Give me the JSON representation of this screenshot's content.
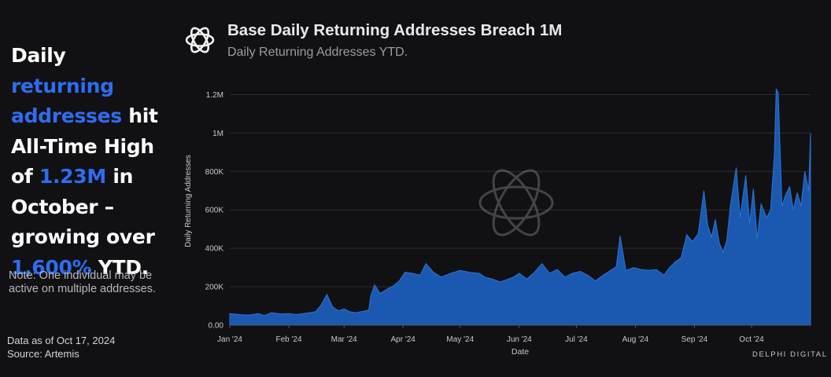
{
  "headline": {
    "p1": "Daily ",
    "h1": "returning addresses",
    "p2": " hit All-Time High of ",
    "h2": "1.23M",
    "p3": " in October – growing over ",
    "h3": "1,600%",
    "p4": " YTD."
  },
  "note": "Note: One individual may be active on multiple addresses.",
  "data_as_of": "Data as of Oct 17, 2024",
  "source": "Source: Artemis",
  "brand": "DELPHI DIGITAL",
  "colors": {
    "accent": "#2f6cf0",
    "area": "#1c5fbf",
    "background": "#111114"
  },
  "logo_icon": "delphi-knot-icon",
  "chart_data": {
    "type": "area",
    "title": "Base Daily Returning Addresses Breach 1M",
    "subtitle": "Daily Returning Addresses YTD.",
    "xlabel": "Date",
    "ylabel": "Daily Returning Addresses",
    "x_start": "2024-01-01",
    "x_end": "2024-10-17",
    "ylim": [
      0,
      1300000
    ],
    "y_ticks": [
      {
        "value": 0,
        "label": "0.00"
      },
      {
        "value": 200000,
        "label": "200K"
      },
      {
        "value": 400000,
        "label": "400K"
      },
      {
        "value": 600000,
        "label": "600K"
      },
      {
        "value": 800000,
        "label": "800K"
      },
      {
        "value": 1000000,
        "label": "1M"
      },
      {
        "value": 1200000,
        "label": "1.2M"
      }
    ],
    "x_ticks": [
      {
        "day": 0,
        "label": "Jan '24"
      },
      {
        "day": 31,
        "label": "Feb '24"
      },
      {
        "day": 60,
        "label": "Mar '24"
      },
      {
        "day": 91,
        "label": "Apr '24"
      },
      {
        "day": 121,
        "label": "May '24"
      },
      {
        "day": 152,
        "label": "Jun '24"
      },
      {
        "day": 182,
        "label": "Jul '24"
      },
      {
        "day": 213,
        "label": "Aug '24"
      },
      {
        "day": 244,
        "label": "Sep '24"
      },
      {
        "day": 274,
        "label": "Oct '24"
      }
    ],
    "grid": true,
    "series": [
      {
        "name": "Daily Returning Addresses",
        "points": [
          [
            0,
            60000
          ],
          [
            5,
            55000
          ],
          [
            10,
            52000
          ],
          [
            15,
            60000
          ],
          [
            18,
            50000
          ],
          [
            22,
            65000
          ],
          [
            27,
            58000
          ],
          [
            31,
            60000
          ],
          [
            35,
            55000
          ],
          [
            40,
            62000
          ],
          [
            45,
            70000
          ],
          [
            48,
            105000
          ],
          [
            51,
            160000
          ],
          [
            54,
            95000
          ],
          [
            57,
            75000
          ],
          [
            60,
            85000
          ],
          [
            63,
            70000
          ],
          [
            66,
            65000
          ],
          [
            70,
            72000
          ],
          [
            73,
            78000
          ],
          [
            74,
            150000
          ],
          [
            76,
            210000
          ],
          [
            79,
            165000
          ],
          [
            83,
            190000
          ],
          [
            86,
            205000
          ],
          [
            89,
            230000
          ],
          [
            92,
            275000
          ],
          [
            96,
            270000
          ],
          [
            100,
            260000
          ],
          [
            103,
            320000
          ],
          [
            107,
            275000
          ],
          [
            111,
            250000
          ],
          [
            116,
            270000
          ],
          [
            121,
            285000
          ],
          [
            126,
            275000
          ],
          [
            131,
            270000
          ],
          [
            134,
            250000
          ],
          [
            138,
            240000
          ],
          [
            142,
            225000
          ],
          [
            145,
            235000
          ],
          [
            149,
            250000
          ],
          [
            152,
            270000
          ],
          [
            156,
            240000
          ],
          [
            160,
            275000
          ],
          [
            164,
            320000
          ],
          [
            168,
            270000
          ],
          [
            172,
            290000
          ],
          [
            176,
            250000
          ],
          [
            180,
            270000
          ],
          [
            184,
            280000
          ],
          [
            188,
            260000
          ],
          [
            192,
            230000
          ],
          [
            196,
            260000
          ],
          [
            200,
            285000
          ],
          [
            203,
            305000
          ],
          [
            205,
            465000
          ],
          [
            208,
            285000
          ],
          [
            212,
            300000
          ],
          [
            216,
            290000
          ],
          [
            220,
            285000
          ],
          [
            224,
            290000
          ],
          [
            228,
            260000
          ],
          [
            231,
            300000
          ],
          [
            234,
            330000
          ],
          [
            237,
            350000
          ],
          [
            240,
            470000
          ],
          [
            243,
            435000
          ],
          [
            246,
            475000
          ],
          [
            249,
            700000
          ],
          [
            251,
            520000
          ],
          [
            253,
            460000
          ],
          [
            255,
            550000
          ],
          [
            257,
            430000
          ],
          [
            259,
            380000
          ],
          [
            261,
            440000
          ],
          [
            263,
            630000
          ],
          [
            266,
            820000
          ],
          [
            268,
            560000
          ],
          [
            271,
            780000
          ],
          [
            273,
            530000
          ],
          [
            275,
            710000
          ],
          [
            277,
            450000
          ],
          [
            279,
            630000
          ],
          [
            282,
            560000
          ],
          [
            284,
            600000
          ],
          [
            286,
            880000
          ],
          [
            287,
            1230000
          ],
          [
            288,
            1210000
          ],
          [
            290,
            620000
          ],
          [
            292,
            680000
          ],
          [
            294,
            720000
          ],
          [
            296,
            600000
          ],
          [
            298,
            690000
          ],
          [
            300,
            620000
          ],
          [
            302,
            800000
          ],
          [
            304,
            700000
          ],
          [
            305,
            1000000
          ]
        ]
      }
    ]
  }
}
